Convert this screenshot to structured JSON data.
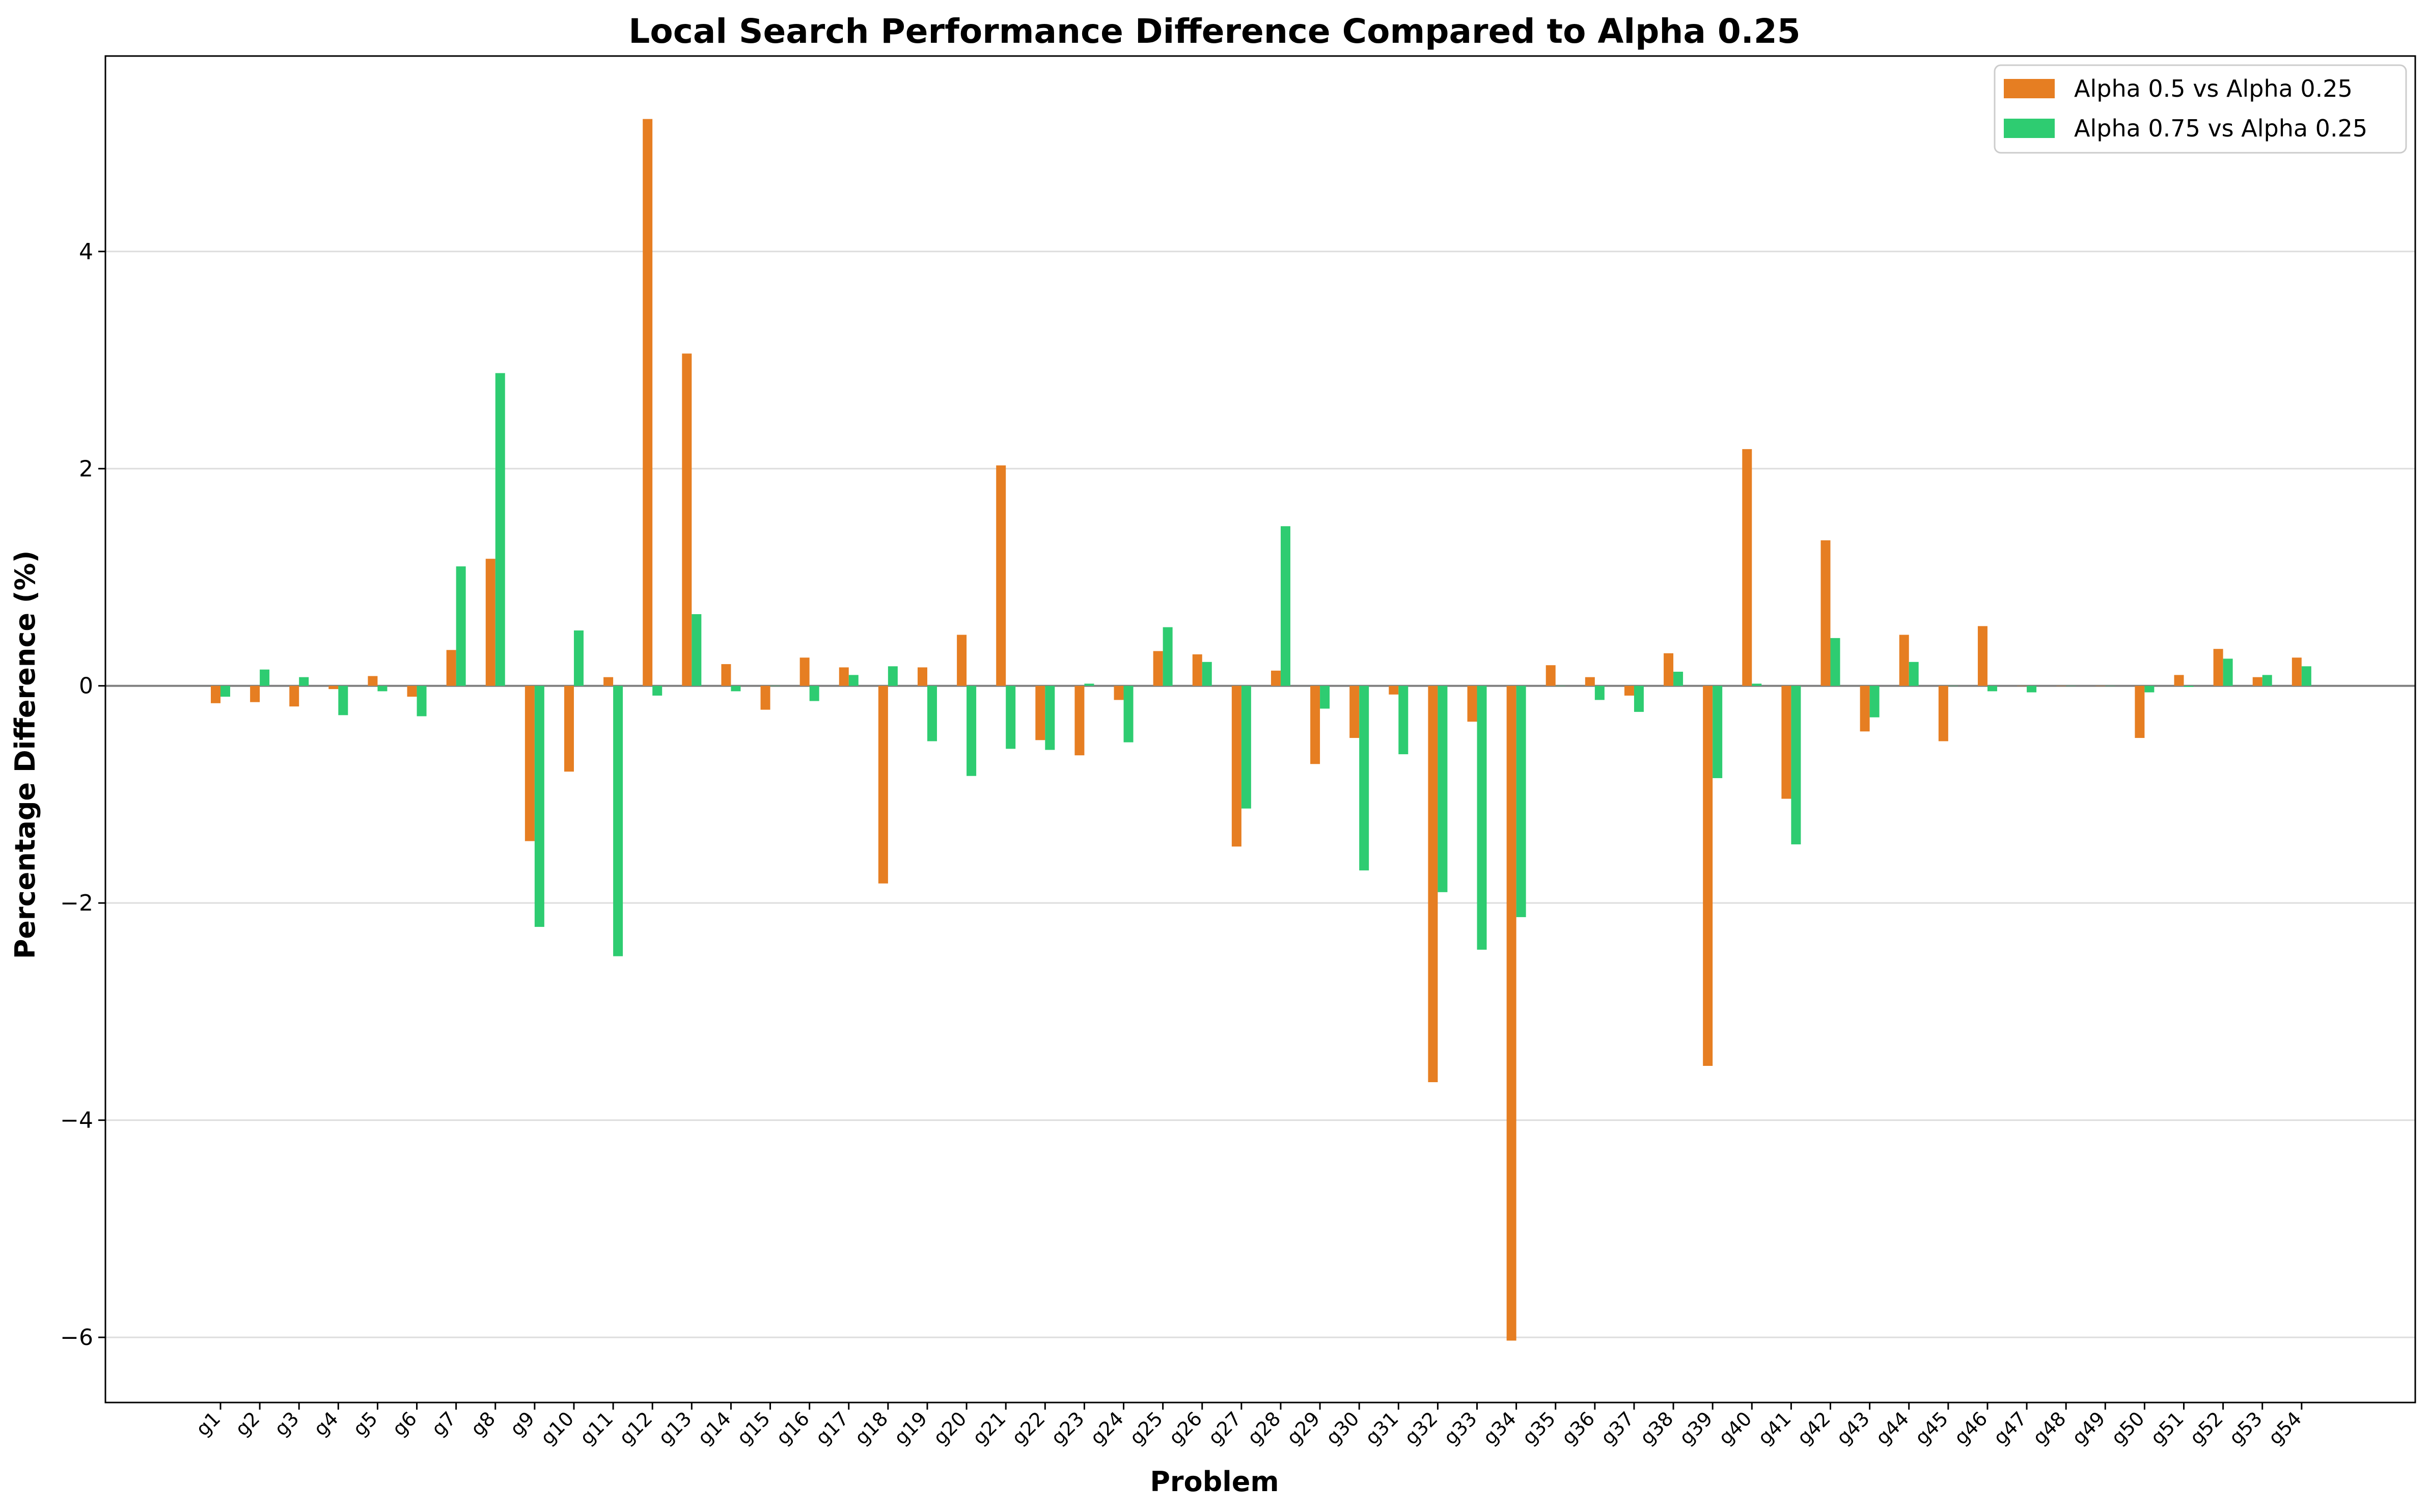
{
  "chart_data": {
    "type": "bar",
    "title": "Local Search Performance Difference Compared to Alpha 0.25",
    "xlabel": "Problem",
    "ylabel": "Percentage Difference (%)",
    "ylim": [
      -6.6,
      5.8
    ],
    "yticks": [
      -6,
      -4,
      -2,
      0,
      2,
      4
    ],
    "ytick_labels": [
      "−6",
      "−4",
      "−2",
      "0",
      "2",
      "4"
    ],
    "grid": "y",
    "legend_position": "top-right",
    "categories": [
      "g1",
      "g2",
      "g3",
      "g4",
      "g5",
      "g6",
      "g7",
      "g8",
      "g9",
      "g10",
      "g11",
      "g12",
      "g13",
      "g14",
      "g15",
      "g16",
      "g17",
      "g18",
      "g19",
      "g20",
      "g21",
      "g22",
      "g23",
      "g24",
      "g25",
      "g26",
      "g27",
      "g28",
      "g29",
      "g30",
      "g31",
      "g32",
      "g33",
      "g34",
      "g35",
      "g36",
      "g37",
      "g38",
      "g39",
      "g40",
      "g41",
      "g42",
      "g43",
      "g44",
      "g45",
      "g46",
      "g47",
      "g48",
      "g49",
      "g50",
      "g51",
      "g52",
      "g53",
      "g54"
    ],
    "series": [
      {
        "name": "Alpha 0.5 vs Alpha 0.25",
        "color": "#e67e22",
        "values": [
          -0.16,
          -0.15,
          -0.19,
          -0.03,
          0.09,
          -0.1,
          0.33,
          1.17,
          -1.43,
          -0.79,
          0.08,
          5.22,
          3.06,
          0.2,
          -0.22,
          0.26,
          0.17,
          -1.82,
          0.17,
          0.47,
          2.03,
          -0.5,
          -0.64,
          -0.13,
          0.32,
          0.29,
          -1.48,
          0.14,
          -0.72,
          -0.48,
          -0.08,
          -3.65,
          -0.33,
          -6.03,
          0.19,
          0.08,
          -0.09,
          0.3,
          -3.5,
          2.18,
          -1.04,
          1.34,
          -0.42,
          0.47,
          -0.51,
          0.55,
          0.0,
          0.0,
          0.0,
          -0.48,
          0.1,
          0.34,
          0.08,
          0.26
        ]
      },
      {
        "name": "Alpha 0.75 vs Alpha 0.25",
        "color": "#2ecc71",
        "values": [
          -0.1,
          0.15,
          0.08,
          -0.27,
          -0.05,
          -0.28,
          1.1,
          2.88,
          -2.22,
          0.51,
          -2.49,
          -0.09,
          0.66,
          -0.05,
          0.0,
          -0.14,
          0.1,
          0.18,
          -0.51,
          -0.83,
          -0.58,
          -0.59,
          0.02,
          -0.52,
          0.54,
          0.22,
          -1.13,
          1.47,
          -0.21,
          -1.7,
          -0.63,
          -1.9,
          -2.43,
          -2.13,
          0.0,
          -0.13,
          -0.24,
          0.13,
          -0.85,
          0.02,
          -1.46,
          0.44,
          -0.29,
          0.22,
          0.0,
          -0.05,
          -0.06,
          0.0,
          0.0,
          -0.06,
          -0.01,
          0.25,
          0.1,
          0.18
        ]
      }
    ]
  }
}
